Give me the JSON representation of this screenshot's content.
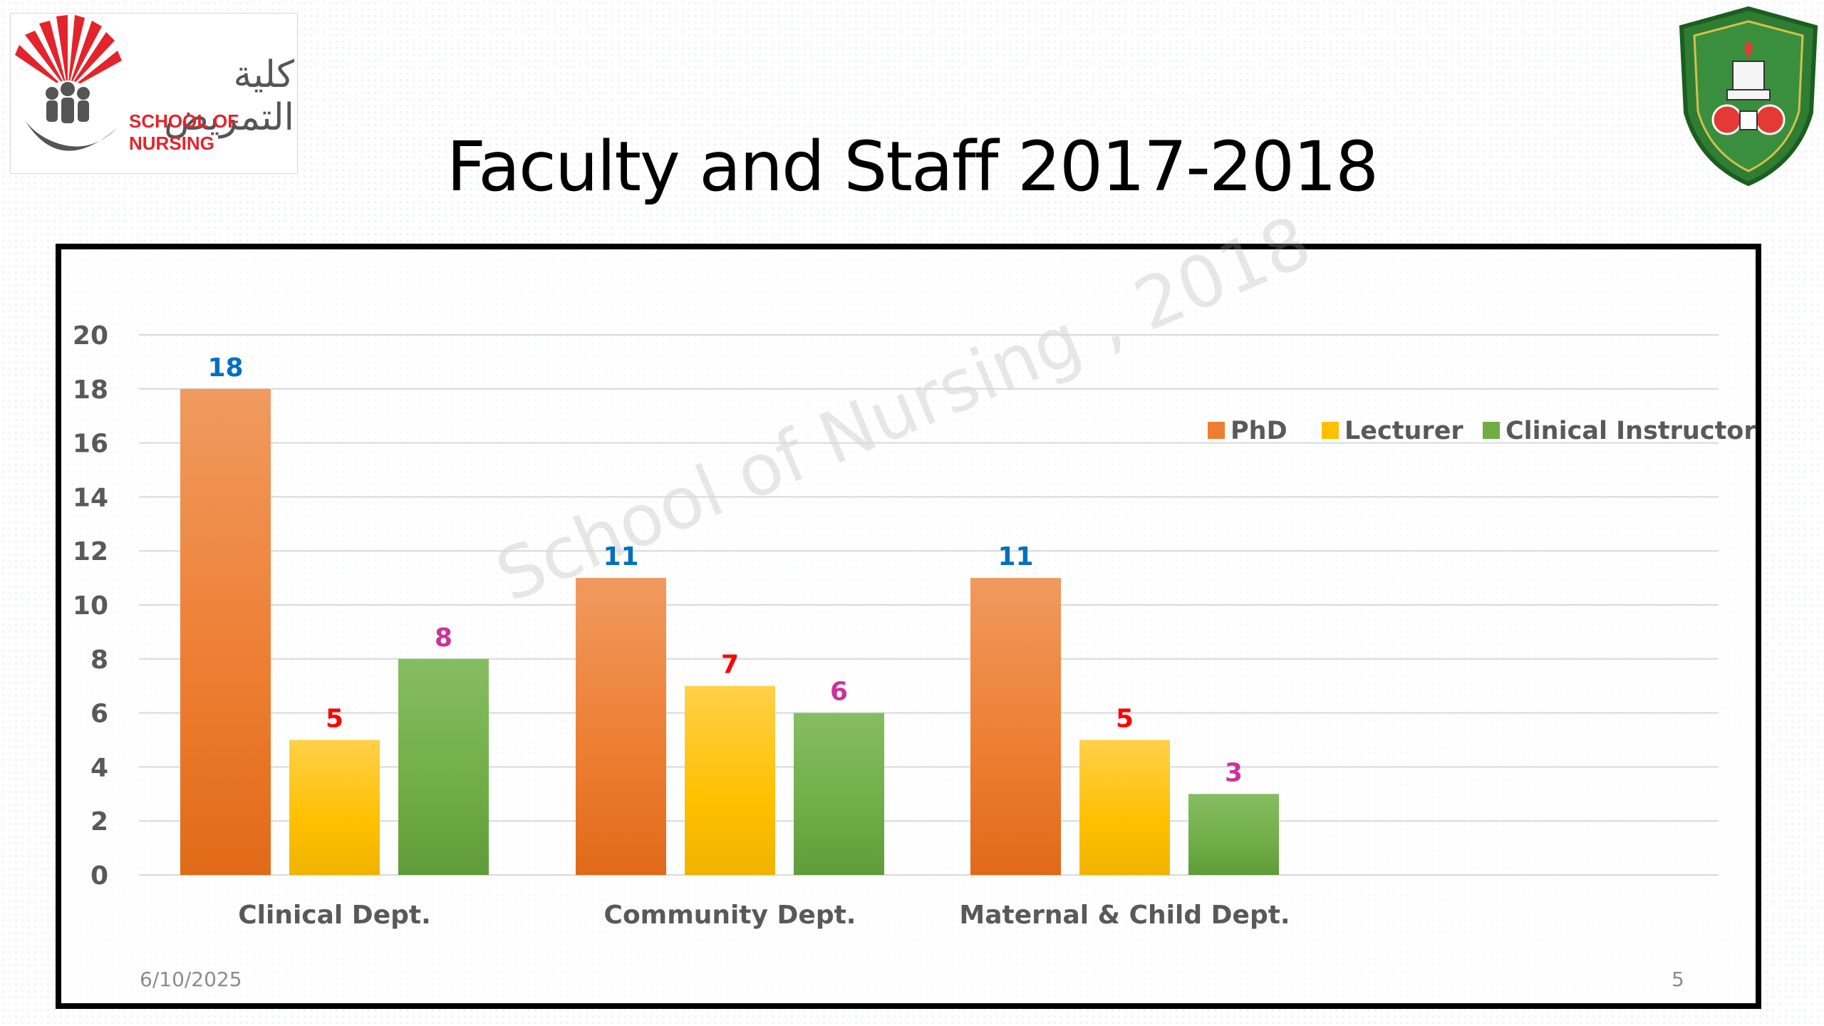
{
  "header": {
    "title": "Faculty and Staff 2017-2018",
    "logo_left_arabic": "كلية التمريض",
    "logo_left_text": "SCHOOL OF NURSING"
  },
  "watermark": "School of Nursing , 2018",
  "footer": {
    "date": "6/10/2025",
    "page": "5"
  },
  "colors": {
    "phd": "#ed7d31",
    "lecturer": "#ffc000",
    "clinical": "#70ad47",
    "label_phd": "#0070c0",
    "label_lecturer": "#ff0000",
    "label_clinical": "#cc3399"
  },
  "chart_data": {
    "type": "bar",
    "title": "",
    "xlabel": "",
    "ylabel": "",
    "categories": [
      "Clinical Dept.",
      "Community Dept.",
      "Maternal & Child Dept."
    ],
    "series": [
      {
        "name": "PhD",
        "values": [
          18,
          11,
          11
        ]
      },
      {
        "name": "Lecturer",
        "values": [
          5,
          7,
          5
        ]
      },
      {
        "name": "Clinical Instructor",
        "values": [
          8,
          6,
          3
        ]
      }
    ],
    "ylim": [
      0,
      20
    ],
    "yticks": [
      0,
      2,
      4,
      6,
      8,
      10,
      12,
      14,
      16,
      18,
      20
    ],
    "grid": true,
    "legend_position": "top-right",
    "data_labels": true
  }
}
